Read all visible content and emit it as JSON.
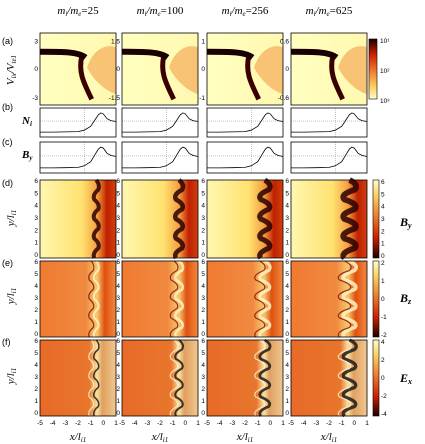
{
  "columns": [
    {
      "label": "m_i/m_e=25",
      "ratio": "25"
    },
    {
      "label": "m_i/m_e=100",
      "ratio": "100"
    },
    {
      "label": "m_i/m_e=256",
      "ratio": "256"
    },
    {
      "label": "m_i/m_e=625",
      "ratio": "625"
    }
  ],
  "column_label_prefix": "m",
  "panel_letters": [
    "(a)",
    "(b)",
    "(c)",
    "(d)",
    "(e)",
    "(f)"
  ],
  "row_a": {
    "ylabel": "V_ix/V_te1",
    "yticks": [
      [
        "3",
        "0",
        "-3"
      ],
      [
        "1.5",
        "0",
        "-1.5"
      ],
      [
        "1",
        "0",
        "-1"
      ],
      [
        "0.6",
        "0",
        "-0.6"
      ]
    ],
    "colorbar_ticks": [
      "10¹",
      "10²",
      "10³"
    ]
  },
  "row_b": {
    "ylabel": "N_i"
  },
  "row_c": {
    "ylabel": "B_y"
  },
  "row_d": {
    "ylabel": "y/l_i1",
    "field": "B_y",
    "colorbar_ticks": [
      "6",
      "5",
      "4",
      "3",
      "2",
      "1",
      "0"
    ]
  },
  "row_e": {
    "ylabel": "y/l_i1",
    "field": "B_z",
    "colorbar_ticks": [
      "2",
      "1",
      "0",
      "-1",
      "-2"
    ]
  },
  "row_f": {
    "ylabel": "y/l_i1",
    "field": "E_x",
    "colorbar_ticks": [
      "4",
      "2",
      "0",
      "-2",
      "-4"
    ]
  },
  "map_yticks": [
    "6",
    "5",
    "4",
    "3",
    "2",
    "1",
    "0"
  ],
  "xticks": [
    "-5",
    "-4",
    "-3",
    "-2",
    "-1",
    "0",
    "1"
  ],
  "xlabel": "x/l_i1",
  "chart_data": [
    {
      "type": "line",
      "name": "N_i profile",
      "x": [
        -5,
        -4,
        -3,
        -2,
        -1.5,
        -1,
        -0.7,
        -0.4,
        -0.2,
        0,
        0.3,
        0.6,
        1
      ],
      "series": [
        {
          "values": [
            1.0,
            1.0,
            1.02,
            1.05,
            1.2,
            1.6,
            2.2,
            2.8,
            3.0,
            2.9,
            2.4,
            2.2,
            2.1
          ]
        }
      ]
    },
    {
      "type": "line",
      "name": "B_y profile",
      "x": [
        -5,
        -4,
        -3,
        -2,
        -1.5,
        -1,
        -0.7,
        -0.4,
        -0.2,
        0,
        0.3,
        0.6,
        1
      ],
      "series": [
        {
          "values": [
            1.0,
            1.0,
            1.02,
            1.05,
            1.2,
            1.6,
            2.2,
            2.8,
            3.0,
            2.9,
            2.4,
            2.2,
            2.1
          ]
        }
      ]
    }
  ],
  "colors": {
    "map_low": "#ffffc8",
    "map_mid": "#f08030",
    "map_high": "#c81e00",
    "map_max": "#1a0000"
  }
}
